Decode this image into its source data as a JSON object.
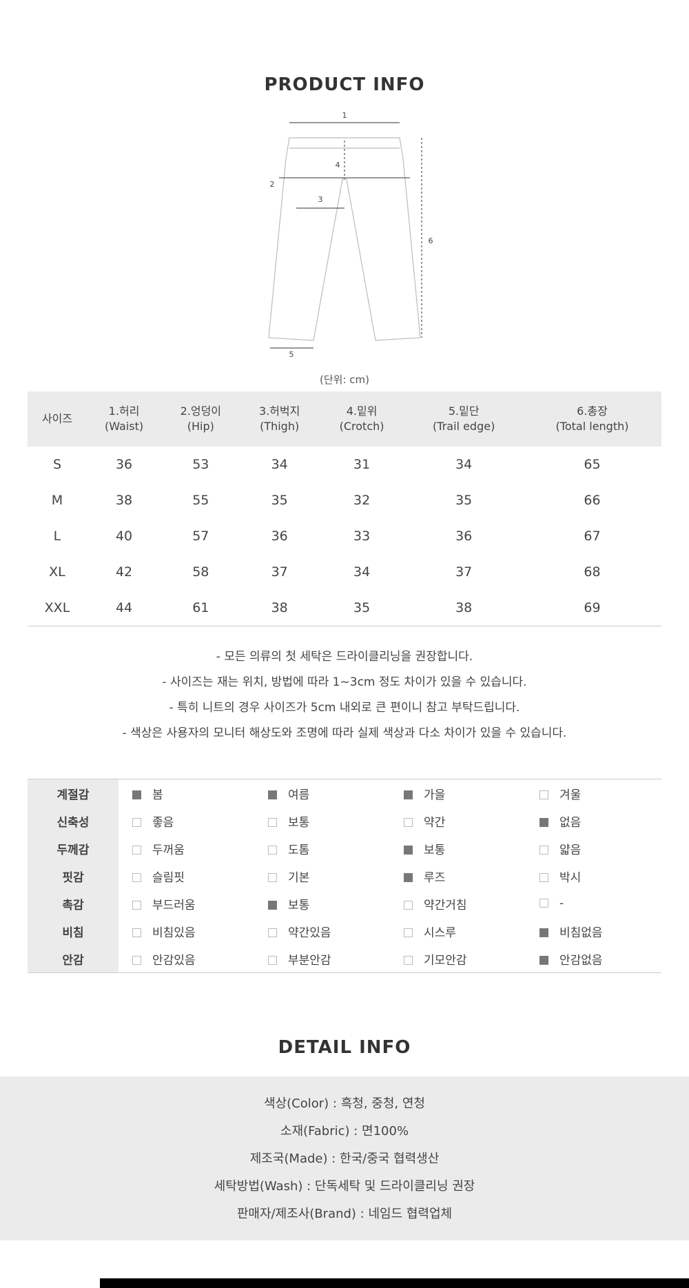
{
  "header": {
    "title": "PRODUCT INFO"
  },
  "diagram": {
    "labels": [
      "1",
      "2",
      "3",
      "4",
      "5",
      "6"
    ]
  },
  "unit": "(단위: cm)",
  "size_table": {
    "headers": [
      {
        "ko": "사이즈"
      },
      {
        "ko": "1.허리",
        "en": "(Waist)"
      },
      {
        "ko": "2.엉덩이",
        "en": "(Hip)"
      },
      {
        "ko": "3.허벅지",
        "en": "(Thigh)"
      },
      {
        "ko": "4.밑위",
        "en": "(Crotch)"
      },
      {
        "ko": "5.밑단",
        "en": "(Trail edge)"
      },
      {
        "ko": "6.총장",
        "en": "(Total length)"
      }
    ],
    "rows": [
      {
        "size": "S",
        "values": [
          36,
          53,
          34,
          31,
          34,
          65
        ]
      },
      {
        "size": "M",
        "values": [
          38,
          55,
          35,
          32,
          35,
          66
        ]
      },
      {
        "size": "L",
        "values": [
          40,
          57,
          36,
          33,
          36,
          67
        ]
      },
      {
        "size": "XL",
        "values": [
          42,
          58,
          37,
          34,
          37,
          68
        ]
      },
      {
        "size": "XXL",
        "values": [
          44,
          61,
          38,
          35,
          38,
          69
        ]
      }
    ]
  },
  "notes": [
    "- 모든 의류의 첫 세탁은 드라이클리닝을 권장합니다.",
    "- 사이즈는 재는 위치, 방법에 따라 1~3cm 정도 차이가 있을 수 있습니다.",
    "- 특히 니트의 경우 사이즈가 5cm 내외로 큰 편이니 참고 부탁드립니다.",
    "- 색상은 사용자의 모니터 해상도와 조명에 따라 실제 색상과 다소 차이가 있을 수 있습니다."
  ],
  "attributes": [
    {
      "label": "계절감",
      "options": [
        {
          "text": "봄",
          "checked": true
        },
        {
          "text": "여름",
          "checked": true
        },
        {
          "text": "가을",
          "checked": true
        },
        {
          "text": "겨울",
          "checked": false
        }
      ]
    },
    {
      "label": "신축성",
      "options": [
        {
          "text": "좋음",
          "checked": false
        },
        {
          "text": "보통",
          "checked": false
        },
        {
          "text": "약간",
          "checked": false
        },
        {
          "text": "없음",
          "checked": true
        }
      ]
    },
    {
      "label": "두께감",
      "options": [
        {
          "text": "두꺼움",
          "checked": false
        },
        {
          "text": "도톰",
          "checked": false
        },
        {
          "text": "보통",
          "checked": true
        },
        {
          "text": "얇음",
          "checked": false
        }
      ]
    },
    {
      "label": "핏감",
      "options": [
        {
          "text": "슬림핏",
          "checked": false
        },
        {
          "text": "기본",
          "checked": false
        },
        {
          "text": "루즈",
          "checked": true
        },
        {
          "text": "박시",
          "checked": false
        }
      ]
    },
    {
      "label": "촉감",
      "options": [
        {
          "text": "부드러움",
          "checked": false
        },
        {
          "text": "보통",
          "checked": true
        },
        {
          "text": "약간거침",
          "checked": false
        },
        {
          "text": "-",
          "checked": false
        }
      ]
    },
    {
      "label": "비침",
      "options": [
        {
          "text": "비침있음",
          "checked": false
        },
        {
          "text": "약간있음",
          "checked": false
        },
        {
          "text": "시스루",
          "checked": false
        },
        {
          "text": "비침없음",
          "checked": true
        }
      ]
    },
    {
      "label": "안감",
      "options": [
        {
          "text": "안감있음",
          "checked": false
        },
        {
          "text": "부분안감",
          "checked": false
        },
        {
          "text": "기모안감",
          "checked": false
        },
        {
          "text": "안감없음",
          "checked": true
        }
      ]
    }
  ],
  "detail": {
    "title": "DETAIL INFO",
    "lines": [
      "색상(Color) : 흑청, 중청, 연청",
      "소재(Fabric) : 면100%",
      "제조국(Made) : 한국/중국 협력생산",
      "세탁방법(Wash) : 단독세탁 및 드라이클리닝 권장",
      "판매자/제조사(Brand) : 네임드 협력업체"
    ]
  }
}
